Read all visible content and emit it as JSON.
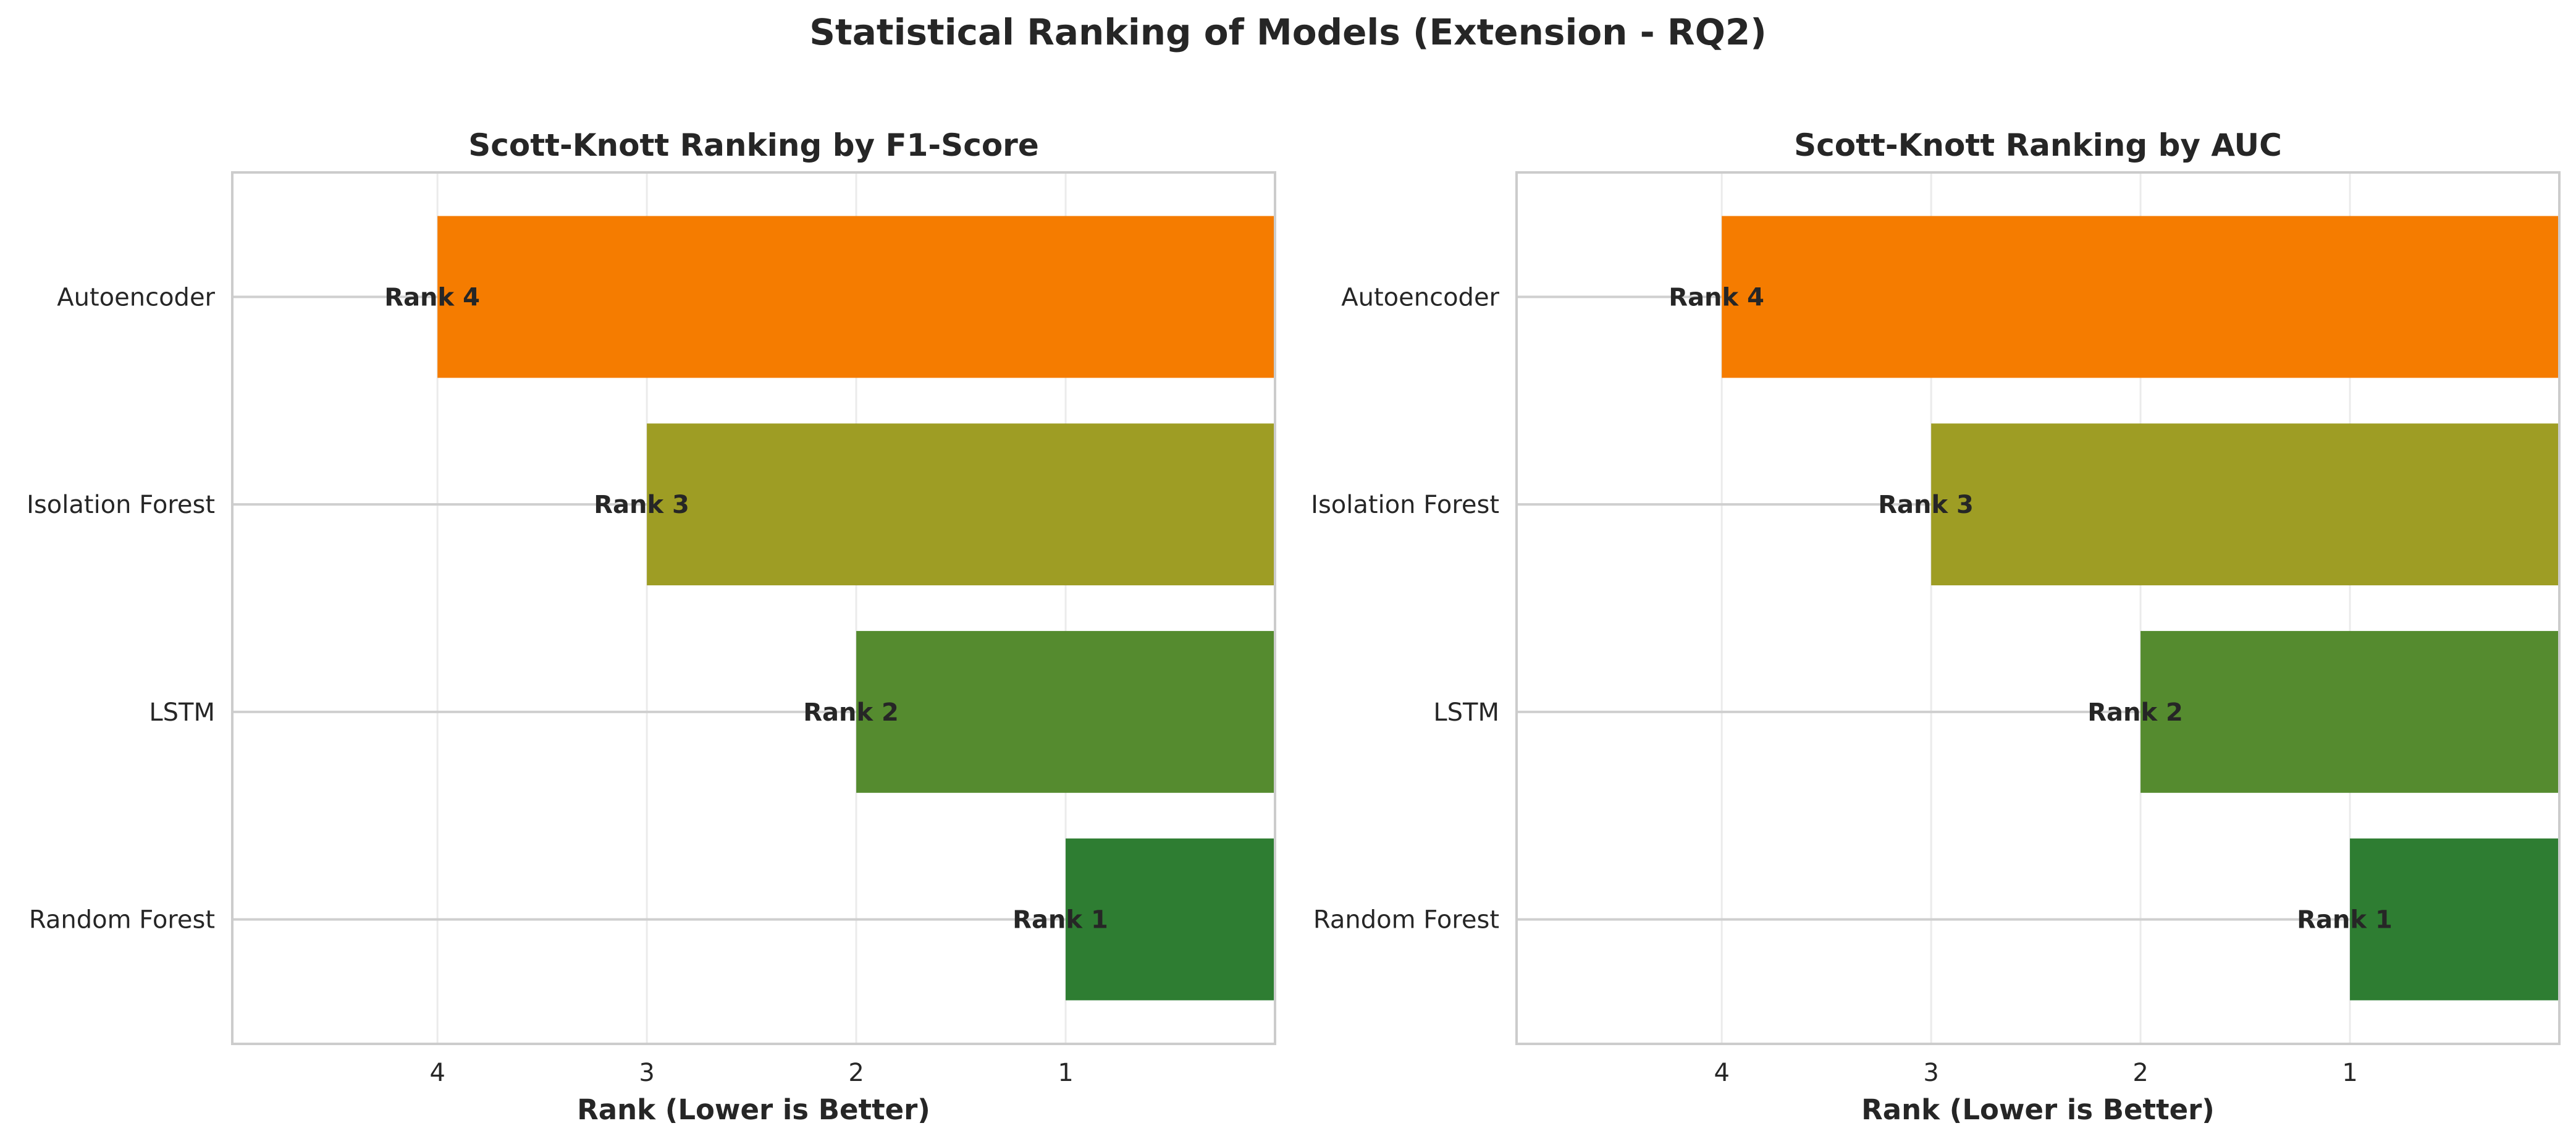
{
  "figure_title": "Statistical Ranking of Models (Extension - RQ2)",
  "chart_data": [
    {
      "type": "bar",
      "orientation": "horizontal",
      "title": "Scott-Knott Ranking by F1-Score",
      "xlabel": "Rank (Lower is Better)",
      "ylabel": "",
      "x_inverted": true,
      "xlim": [
        4.98,
        0
      ],
      "xticks": [
        4,
        3,
        2,
        1
      ],
      "grid": true,
      "categories": [
        "Autoencoder",
        "Isolation Forest",
        "LSTM",
        "Random Forest"
      ],
      "values": [
        4,
        3,
        2,
        1
      ],
      "labels": [
        "Rank 4",
        "Rank 3",
        "Rank 2",
        "Rank 1"
      ],
      "colors": [
        "#f57c00",
        "#9e9d24",
        "#558b2f",
        "#2e7d32"
      ]
    },
    {
      "type": "bar",
      "orientation": "horizontal",
      "title": "Scott-Knott Ranking by AUC",
      "xlabel": "Rank (Lower is Better)",
      "ylabel": "",
      "x_inverted": true,
      "xlim": [
        4.98,
        0
      ],
      "xticks": [
        4,
        3,
        2,
        1
      ],
      "grid": true,
      "categories": [
        "Autoencoder",
        "Isolation Forest",
        "LSTM",
        "Random Forest"
      ],
      "values": [
        4,
        3,
        2,
        1
      ],
      "labels": [
        "Rank 4",
        "Rank 3",
        "Rank 2",
        "Rank 1"
      ],
      "colors": [
        "#f57c00",
        "#9e9d24",
        "#558b2f",
        "#2e7d32"
      ]
    }
  ]
}
